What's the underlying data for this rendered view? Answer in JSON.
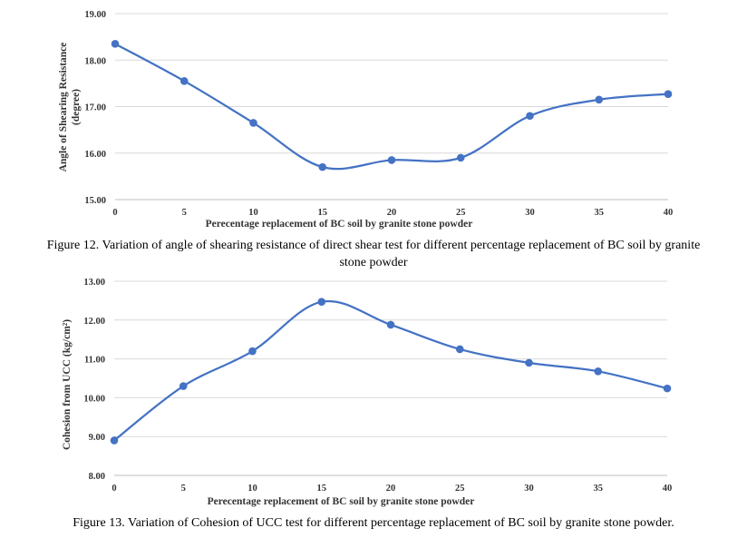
{
  "chart_data": [
    {
      "type": "line",
      "xlabel": "Perecentage replacement of BC soil by granite stone powder",
      "ylabel_lines": [
        "Angle of Shearing Resistance",
        "(degree)"
      ],
      "x": [
        0,
        5,
        10,
        15,
        20,
        25,
        30,
        35,
        40
      ],
      "x_tick_labels": [
        "0",
        "5",
        "10",
        "15",
        "20",
        "25",
        "30",
        "35",
        "40"
      ],
      "y_tick_labels": [
        "15.00",
        "16.00",
        "17.00",
        "18.00",
        "19.00"
      ],
      "ylim": [
        15,
        19
      ],
      "series": [
        {
          "values": [
            18.35,
            17.55,
            16.65,
            15.7,
            15.85,
            15.9,
            16.8,
            17.15,
            17.27
          ]
        }
      ],
      "caption_lines": [
        "Figure 12. Variation of angle of shearing resistance of direct shear test for different percentage replacement of BC soil by granite",
        "stone powder"
      ]
    },
    {
      "type": "line",
      "xlabel": "Perecentage replacement of BC soil by granite stone powder",
      "ylabel_lines": [
        "Cohesion from UCC (kg/cm²)"
      ],
      "x": [
        0,
        5,
        10,
        15,
        20,
        25,
        30,
        35,
        40
      ],
      "x_tick_labels": [
        "0",
        "5",
        "10",
        "15",
        "20",
        "25",
        "30",
        "35",
        "40"
      ],
      "y_tick_labels": [
        "8.00",
        "9.00",
        "10.00",
        "11.00",
        "12.00",
        "13.00"
      ],
      "ylim": [
        8,
        13
      ],
      "series": [
        {
          "values": [
            8.9,
            10.3,
            11.2,
            12.47,
            11.88,
            11.25,
            10.9,
            10.68,
            10.24
          ]
        }
      ],
      "caption_lines": [
        "Figure 13. Variation of Cohesion of UCC test for different percentage replacement of BC soil by granite stone powder."
      ]
    }
  ],
  "colors": {
    "series": "#4472C4",
    "grid": "#d9d9d9",
    "axis": "#bfbfbf"
  }
}
